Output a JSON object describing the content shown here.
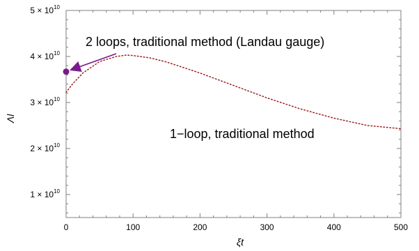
{
  "chart_data": {
    "type": "line",
    "title": "",
    "xlabel": "ξt",
    "ylabel": "Λl",
    "xlim": [
      0,
      500
    ],
    "ylim": [
      5000000000,
      50000000000
    ],
    "x_ticks": [
      {
        "value": 0,
        "label": "0"
      },
      {
        "value": 100,
        "label": "100"
      },
      {
        "value": 200,
        "label": "200"
      },
      {
        "value": 300,
        "label": "300"
      },
      {
        "value": 400,
        "label": "400"
      },
      {
        "value": 500,
        "label": "500"
      }
    ],
    "y_ticks": [
      {
        "value": 10000000000,
        "label": "1 × 10",
        "exp": "10"
      },
      {
        "value": 20000000000,
        "label": "2 × 10",
        "exp": "10"
      },
      {
        "value": 30000000000,
        "label": "3 × 10",
        "exp": "10"
      },
      {
        "value": 40000000000,
        "label": "4 × 10",
        "exp": "10"
      },
      {
        "value": 50000000000,
        "label": "5 × 10",
        "exp": "10"
      }
    ],
    "series": [
      {
        "name": "1−loop, traditional method",
        "style": "dotted",
        "color": "#9b1d1d",
        "points": [
          {
            "x": 0,
            "y": 32200000000
          },
          {
            "x": 10,
            "y": 34100000000
          },
          {
            "x": 25,
            "y": 36400000000
          },
          {
            "x": 50,
            "y": 38900000000
          },
          {
            "x": 75,
            "y": 40000000000
          },
          {
            "x": 90,
            "y": 40300000000
          },
          {
            "x": 100,
            "y": 40200000000
          },
          {
            "x": 125,
            "y": 39700000000
          },
          {
            "x": 150,
            "y": 38800000000
          },
          {
            "x": 200,
            "y": 36400000000
          },
          {
            "x": 250,
            "y": 33700000000
          },
          {
            "x": 300,
            "y": 31000000000
          },
          {
            "x": 350,
            "y": 28600000000
          },
          {
            "x": 400,
            "y": 26600000000
          },
          {
            "x": 450,
            "y": 25000000000
          },
          {
            "x": 500,
            "y": 24300000000
          }
        ]
      },
      {
        "name": "2 loops, traditional method (Landau gauge)",
        "style": "point",
        "color": "#7a1b8d",
        "points": [
          {
            "x": 0,
            "y": 36700000000
          }
        ]
      }
    ],
    "annotations": [
      {
        "text": "2 loops, traditional method (Landau gauge)",
        "color": "#7a1b8d",
        "arrow_to": {
          "x": 0,
          "y": 36700000000
        }
      },
      {
        "text": "1−loop, traditional method",
        "color": "#9b1d1d"
      }
    ]
  }
}
